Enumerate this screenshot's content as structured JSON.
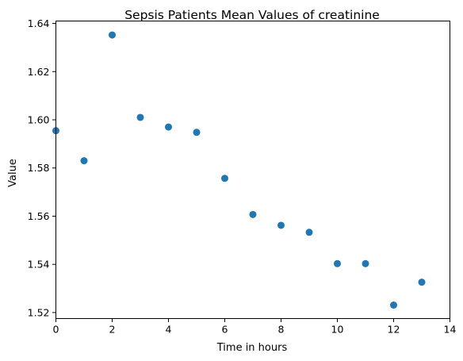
{
  "chart_data": {
    "type": "scatter",
    "title": "Sepsis Patients Mean Values of creatinine",
    "xlabel": "Time in hours",
    "ylabel": "Value",
    "xlim": [
      0,
      14
    ],
    "ylim": [
      1.5175,
      1.641
    ],
    "xticks": [
      "0",
      "2",
      "4",
      "6",
      "8",
      "10",
      "12",
      "14"
    ],
    "yticks": [
      "1.52",
      "1.54",
      "1.56",
      "1.58",
      "1.60",
      "1.62",
      "1.64"
    ],
    "grid": false,
    "marker_color": "#1f77b4",
    "x": [
      0,
      1,
      2,
      3,
      4,
      5,
      6,
      7,
      8,
      9,
      10,
      11,
      12,
      13
    ],
    "y": [
      1.5955,
      1.583,
      1.6352,
      1.601,
      1.597,
      1.5948,
      1.5757,
      1.5607,
      1.5562,
      1.5533,
      1.5403,
      1.5403,
      1.5231,
      1.5326
    ]
  }
}
